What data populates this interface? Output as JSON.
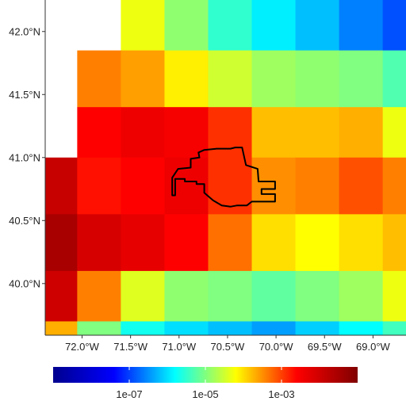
{
  "chart_data": {
    "type": "heatmap",
    "title": "",
    "xlabel": "",
    "ylabel": "",
    "x_centers": [
      -72.3,
      -71.8,
      -71.4,
      -70.9,
      -70.5,
      -70.0,
      -69.6,
      -69.1,
      -68.7
    ],
    "y_centers": [
      42.1,
      41.6,
      41.2,
      40.8,
      40.3,
      39.9,
      39.5
    ],
    "xlim": [
      -72.38,
      -68.66
    ],
    "ylim": [
      39.59,
      42.25
    ],
    "x_ticks": [
      -72.0,
      -71.5,
      -71.0,
      -70.5,
      -70.0,
      -69.5,
      -69.0
    ],
    "x_tick_labels": [
      "72.0°W",
      "71.5°W",
      "71.0°W",
      "70.5°W",
      "70.0°W",
      "69.5°W",
      "69.0°W"
    ],
    "y_ticks": [
      40.0,
      40.5,
      41.0,
      41.5,
      42.0
    ],
    "y_tick_labels": [
      "40.0°N",
      "40.5°N",
      "41.0°N",
      "41.5°N",
      "42.0°N"
    ],
    "color_scale": "log10",
    "value_range_log10": [
      -9,
      -1
    ],
    "colors": [
      "#00008F",
      "#0000FF",
      "#00FFFF",
      "#FFFF00",
      "#FF0000",
      "#800000"
    ],
    "values_log10": [
      [
        null,
        null,
        -4.3,
        -4.9,
        -5.5,
        -5.9,
        -6.2,
        -6.6,
        -6.9
      ],
      [
        null,
        -3.4,
        -3.6,
        -4.1,
        -4.5,
        -4.8,
        -4.9,
        -5.0,
        -5.3
      ],
      [
        null,
        -2.6,
        -2.4,
        -2.5,
        -2.9,
        -3.8,
        -3.8,
        -3.7,
        -4.3
      ],
      [
        -1.9,
        -2.7,
        -2.6,
        -2.4,
        -2.9,
        -3.5,
        -3.4,
        -3.1,
        -3.4
      ],
      [
        -1.5,
        -2.1,
        -2.3,
        -2.6,
        -3.3,
        -4.0,
        -4.2,
        -4.0,
        -3.8
      ],
      [
        -2.0,
        -3.4,
        -4.4,
        -4.9,
        -5.0,
        -5.2,
        -5.0,
        -4.8,
        -4.3
      ],
      [
        -3.7,
        -5.0,
        -5.7,
        -6.0,
        -6.2,
        -6.4,
        -6.1,
        -5.8,
        -5.4
      ]
    ],
    "outline_lonlat": [
      [
        -70.79,
        41.0
      ],
      [
        -70.88,
        40.99
      ],
      [
        -70.88,
        40.92
      ],
      [
        -71.01,
        40.91
      ],
      [
        -71.07,
        40.84
      ],
      [
        -71.07,
        40.7
      ],
      [
        -71.04,
        40.7
      ],
      [
        -71.04,
        40.83
      ],
      [
        -70.94,
        40.83
      ],
      [
        -70.94,
        40.81
      ],
      [
        -70.82,
        40.81
      ],
      [
        -70.82,
        40.79
      ],
      [
        -70.74,
        40.79
      ],
      [
        -70.74,
        40.72
      ],
      [
        -70.65,
        40.66
      ],
      [
        -70.56,
        40.62
      ],
      [
        -70.47,
        40.61
      ],
      [
        -70.4,
        40.62
      ],
      [
        -70.3,
        40.62
      ],
      [
        -70.25,
        40.65
      ],
      [
        -70.01,
        40.65
      ],
      [
        -70.01,
        40.71
      ],
      [
        -70.15,
        40.71
      ],
      [
        -70.15,
        40.75
      ],
      [
        -70.01,
        40.75
      ],
      [
        -70.01,
        40.81
      ],
      [
        -70.18,
        40.81
      ],
      [
        -70.19,
        40.91
      ],
      [
        -70.31,
        40.94
      ],
      [
        -70.35,
        41.08
      ],
      [
        -70.42,
        41.08
      ],
      [
        -70.47,
        41.07
      ],
      [
        -70.61,
        41.07
      ],
      [
        -70.74,
        41.06
      ],
      [
        -70.8,
        41.04
      ]
    ],
    "colorbar": {
      "ticks_log10": [
        -7,
        -5,
        -3
      ],
      "labels": [
        "1e-07",
        "1e-05",
        "1e-03"
      ]
    }
  }
}
